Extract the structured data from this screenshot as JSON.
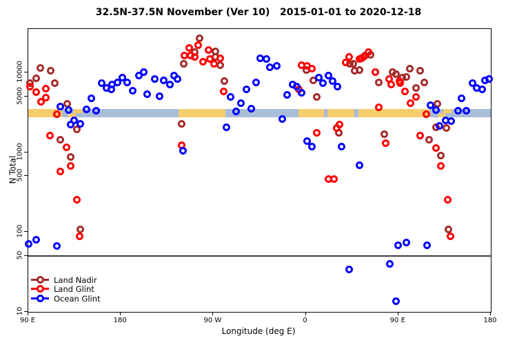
{
  "title": "32.5N-37.5N November (Ver 10)   2015-01-01 to 2020-12-18",
  "chart_data": {
    "type": "scatter",
    "title": "32.5N-37.5N November (Ver 10)   2015-01-01 to 2020-12-18",
    "xlabel": "Longitude (deg E)",
    "ylabel": "N Total",
    "y_scale": "log10",
    "ylim": [
      10,
      35000
    ],
    "x_axis_note": "longitude axis starts at 90E and wraps eastward 450 degrees",
    "x_ticks": {
      "offsets_deg": [
        0,
        90,
        180,
        270,
        360,
        450
      ],
      "labels": [
        "90 E",
        "180",
        "90 W",
        "0",
        "90 E",
        "180"
      ]
    },
    "y_ticks": [
      "10000",
      "5000",
      "1000",
      "500",
      "100",
      "50",
      "10"
    ],
    "y_tick_values": [
      10000,
      5000,
      1000,
      500,
      100,
      50,
      10
    ],
    "reference_line_value": 50,
    "grid": "off",
    "legend_position": "bottom-left",
    "legend": [
      {
        "label": "Land Nadir",
        "color": "#A52A2A"
      },
      {
        "label": "Land Glint",
        "color": "#FF0000"
      },
      {
        "label": "Ocean Glint",
        "color": "#0000FF"
      }
    ],
    "map_band": {
      "value_range": [
        2740,
        3475
      ],
      "ocean_color": "#A9BCD8",
      "land_color": "#F7CC6E",
      "land_segments_deg": [
        [
          0,
          33
        ],
        [
          146,
          192
        ],
        [
          263,
          288
        ],
        [
          291,
          317
        ],
        [
          321,
          390
        ]
      ],
      "island_patches_deg": [
        {
          "range": [
            39,
            46
          ],
          "part": "lower"
        },
        {
          "range": [
            44,
            52
          ],
          "part": "upper"
        },
        {
          "range": [
            399,
            406
          ],
          "part": "lower"
        },
        {
          "range": [
            404,
            412
          ],
          "part": "upper"
        }
      ]
    },
    "series": [
      {
        "name": "Land Nadir",
        "color": "#A52A2A",
        "points": [
          [
            12,
            11300
          ],
          [
            21.5,
            10400
          ],
          [
            8,
            8500
          ],
          [
            2,
            7400
          ],
          [
            26,
            7300
          ],
          [
            38,
            4000
          ],
          [
            47,
            1950
          ],
          [
            31,
            1420
          ],
          [
            41.5,
            870
          ],
          [
            50.5,
            107
          ],
          [
            151,
            12750
          ],
          [
            162,
            17800
          ],
          [
            166.5,
            26500
          ],
          [
            182,
            18400
          ],
          [
            182,
            15600
          ],
          [
            187,
            12350
          ],
          [
            191,
            7760
          ],
          [
            149,
            2280
          ],
          [
            277,
            8000
          ],
          [
            270.5,
            10800
          ],
          [
            280.5,
            4880
          ],
          [
            313,
            12750
          ],
          [
            316.5,
            12750
          ],
          [
            317.5,
            10450
          ],
          [
            322,
            10800
          ],
          [
            302,
            1740
          ],
          [
            327.5,
            16100
          ],
          [
            333,
            16650
          ],
          [
            341,
            7500
          ],
          [
            354.5,
            10100
          ],
          [
            358,
            9460
          ],
          [
            363.5,
            8570
          ],
          [
            368,
            8850
          ],
          [
            371,
            11200
          ],
          [
            381,
            10450
          ],
          [
            385.5,
            7500
          ],
          [
            377,
            6350
          ],
          [
            398,
            4000
          ],
          [
            407,
            2000
          ],
          [
            397,
            2060
          ],
          [
            346.5,
            1690
          ],
          [
            390,
            1430
          ],
          [
            401.5,
            900
          ],
          [
            409,
            107
          ]
        ]
      },
      {
        "name": "Land Glint",
        "color": "#FF0000",
        "points": [
          [
            2,
            6580
          ],
          [
            7.5,
            5610
          ],
          [
            17,
            6310
          ],
          [
            17,
            4780
          ],
          [
            12.5,
            4250
          ],
          [
            28,
            2970
          ],
          [
            21,
            1630
          ],
          [
            37,
            1150
          ],
          [
            41.5,
            667
          ],
          [
            31.5,
            577
          ],
          [
            47.5,
            255
          ],
          [
            50,
            88
          ],
          [
            152,
            16100
          ],
          [
            156.5,
            20300
          ],
          [
            158,
            16100
          ],
          [
            162,
            15600
          ],
          [
            165.5,
            21700
          ],
          [
            170,
            13650
          ],
          [
            175.5,
            18960
          ],
          [
            176.5,
            14600
          ],
          [
            181,
            12750
          ],
          [
            186.5,
            15070
          ],
          [
            190,
            5750
          ],
          [
            149,
            1230
          ],
          [
            266,
            12350
          ],
          [
            271.5,
            11950
          ],
          [
            276,
            11200
          ],
          [
            263,
            6170
          ],
          [
            312,
            15600
          ],
          [
            308.5,
            13200
          ],
          [
            322,
            14600
          ],
          [
            326.5,
            15600
          ],
          [
            280.5,
            1740
          ],
          [
            300,
            2000
          ],
          [
            303,
            2200
          ],
          [
            292,
            462
          ],
          [
            297.5,
            462
          ],
          [
            331,
            17800
          ],
          [
            324,
            15070
          ],
          [
            337.5,
            10100
          ],
          [
            351,
            8300
          ],
          [
            353,
            7020
          ],
          [
            361,
            7760
          ],
          [
            362,
            7270
          ],
          [
            366.5,
            5750
          ],
          [
            372,
            4140
          ],
          [
            377,
            4880
          ],
          [
            341,
            3620
          ],
          [
            387,
            2970
          ],
          [
            381,
            1630
          ],
          [
            397,
            1135
          ],
          [
            401.5,
            667
          ],
          [
            408,
            255
          ],
          [
            410.5,
            88
          ],
          [
            347.5,
            1295
          ]
        ]
      },
      {
        "name": "Ocean Glint",
        "color": "#0000FF",
        "points": [
          [
            61.5,
            4720
          ],
          [
            71.5,
            7270
          ],
          [
            76,
            6350
          ],
          [
            31.5,
            3740
          ],
          [
            39,
            3400
          ],
          [
            57,
            3450
          ],
          [
            66,
            3290
          ],
          [
            44.5,
            2520
          ],
          [
            41.5,
            2200
          ],
          [
            50.5,
            2280
          ],
          [
            80.5,
            6170
          ],
          [
            81.5,
            7020
          ],
          [
            87,
            7500
          ],
          [
            91.5,
            8570
          ],
          [
            96,
            7500
          ],
          [
            101.5,
            5940
          ],
          [
            107.5,
            9160
          ],
          [
            112,
            10100
          ],
          [
            116,
            5380
          ],
          [
            123,
            8300
          ],
          [
            127.5,
            5040
          ],
          [
            132,
            8000
          ],
          [
            137.5,
            7020
          ],
          [
            142,
            9160
          ],
          [
            145.5,
            8300
          ],
          [
            197,
            4880
          ],
          [
            212.5,
            6170
          ],
          [
            221.5,
            7500
          ],
          [
            207,
            4140
          ],
          [
            202.5,
            3240
          ],
          [
            217,
            3500
          ],
          [
            192.5,
            2060
          ],
          [
            150.5,
            1040
          ],
          [
            226,
            15070
          ],
          [
            231.5,
            14600
          ],
          [
            235,
            11560
          ],
          [
            241.5,
            11950
          ],
          [
            283,
            8570
          ],
          [
            287,
            7270
          ],
          [
            292,
            9160
          ],
          [
            296,
            7760
          ],
          [
            301,
            6580
          ],
          [
            257,
            7020
          ],
          [
            261.5,
            6580
          ],
          [
            266,
            5570
          ],
          [
            251.5,
            5210
          ],
          [
            247,
            2600
          ],
          [
            271.5,
            1385
          ],
          [
            276,
            1170
          ],
          [
            305,
            1170
          ],
          [
            322,
            690
          ],
          [
            352,
            40
          ],
          [
            312,
            34
          ],
          [
            358,
            13.7
          ],
          [
            368,
            74
          ],
          [
            360,
            68
          ],
          [
            388,
            68
          ],
          [
            391,
            3870
          ],
          [
            397,
            3400
          ],
          [
            400,
            2130
          ],
          [
            406,
            2520
          ],
          [
            411.5,
            2430
          ],
          [
            432.5,
            7270
          ],
          [
            436,
            6350
          ],
          [
            441.5,
            6170
          ],
          [
            444.5,
            7900
          ],
          [
            448,
            8300
          ],
          [
            421.5,
            4720
          ],
          [
            418,
            3340
          ],
          [
            426,
            3290
          ],
          [
            0.5,
            71
          ],
          [
            8,
            80
          ],
          [
            28,
            67
          ]
        ]
      }
    ]
  }
}
